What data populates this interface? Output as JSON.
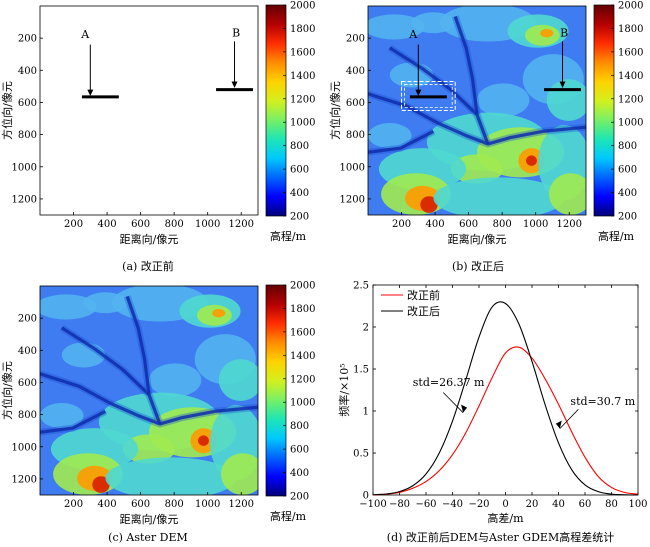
{
  "figure": {
    "colorscale": [
      "#00007a",
      "#0000ff",
      "#0064ff",
      "#00c8ff",
      "#1ee6b4",
      "#78f064",
      "#d2f01e",
      "#ffd200",
      "#ff8c00",
      "#ff2d00",
      "#b40000",
      "#640000"
    ],
    "dem_colors": {
      "valley": "#0a1e9a",
      "river": "#1a4ad2",
      "base": "#3f7cf2",
      "mid": "#52b4f0",
      "upland": "#4fd8d0",
      "high": "#a0ea50",
      "peak": "#ff9a00",
      "summit": "#d81e00"
    }
  },
  "panels": [
    {
      "id": "a",
      "caption": "(a) 改正前",
      "xlabel": "距离向/像元",
      "ylabel": "方位向/像元",
      "xticks": [
        "200",
        "400",
        "600",
        "800",
        "1000",
        "1200"
      ],
      "yticks": [
        "200",
        "400",
        "600",
        "800",
        "1000",
        "1200"
      ],
      "colorbar_ticks": [
        "200",
        "400",
        "600",
        "800",
        "1000",
        "1200",
        "1400",
        "1600",
        "1800",
        "2000"
      ],
      "colorbar_label": "高程/m",
      "markers": [
        "A",
        "B"
      ]
    },
    {
      "id": "b",
      "caption": "(b) 改正后",
      "xlabel": "距离向/像元",
      "ylabel": "方位向/像元",
      "xticks": [
        "200",
        "400",
        "600",
        "800",
        "1000",
        "1200"
      ],
      "yticks": [
        "200",
        "400",
        "600",
        "800",
        "1000",
        "1200"
      ],
      "colorbar_ticks": [
        "200",
        "400",
        "600",
        "800",
        "1000",
        "1200",
        "1400",
        "1600",
        "1800",
        "2000"
      ],
      "colorbar_label": "高程/m",
      "markers": [
        "A",
        "B"
      ]
    },
    {
      "id": "c",
      "caption": "(c) Aster DEM",
      "xlabel": "距离向/像元",
      "ylabel": "方位向/像元",
      "xticks": [
        "200",
        "400",
        "600",
        "800",
        "1000",
        "1200"
      ],
      "yticks": [
        "200",
        "400",
        "600",
        "800",
        "1000",
        "1200"
      ],
      "colorbar_ticks": [
        "200",
        "400",
        "600",
        "800",
        "1000",
        "1200",
        "1400",
        "1600",
        "1800",
        "2000"
      ],
      "colorbar_label": "高程/m",
      "markers": []
    }
  ],
  "chart_data": {
    "type": "line",
    "caption": "(d) 改正前后DEM与Aster GDEM高程差统计",
    "xlabel": "高差/m",
    "ylabel": "频率/×10⁵",
    "xlim": [
      -100,
      100
    ],
    "ylim": [
      0,
      2.5
    ],
    "xticks": [
      "-100",
      "-80",
      "-60",
      "-40",
      "-20",
      "0",
      "20",
      "40",
      "60",
      "80",
      "100"
    ],
    "yticks": [
      "0",
      "0.5",
      "1",
      "1.5",
      "2",
      "2.5"
    ],
    "legend_position": "top-left",
    "series": [
      {
        "name": "改正前",
        "color": "#ff0000",
        "x": [
          -100,
          -90,
          -80,
          -70,
          -60,
          -50,
          -40,
          -30,
          -20,
          -10,
          0,
          10,
          20,
          30,
          40,
          50,
          60,
          70,
          80,
          90,
          100
        ],
        "y": [
          0.001,
          0.01,
          0.03,
          0.08,
          0.16,
          0.29,
          0.48,
          0.74,
          1.06,
          1.4,
          1.69,
          1.76,
          1.63,
          1.38,
          1.08,
          0.75,
          0.45,
          0.22,
          0.09,
          0.03,
          0.01
        ]
      },
      {
        "name": "改正后",
        "color": "#000000",
        "x": [
          -100,
          -90,
          -80,
          -70,
          -60,
          -50,
          -40,
          -30,
          -20,
          -10,
          0,
          10,
          20,
          30,
          40,
          50,
          60,
          70,
          80,
          90,
          100
        ],
        "y": [
          0.003,
          0.012,
          0.04,
          0.11,
          0.25,
          0.5,
          0.88,
          1.37,
          1.88,
          2.24,
          2.28,
          2.04,
          1.59,
          1.07,
          0.62,
          0.3,
          0.12,
          0.04,
          0.01,
          0.003,
          0.001
        ]
      }
    ],
    "annotations": [
      {
        "text": "std=26.37 m",
        "target": "改正后"
      },
      {
        "text": "std=30.7 m",
        "target": "改正前"
      }
    ]
  }
}
